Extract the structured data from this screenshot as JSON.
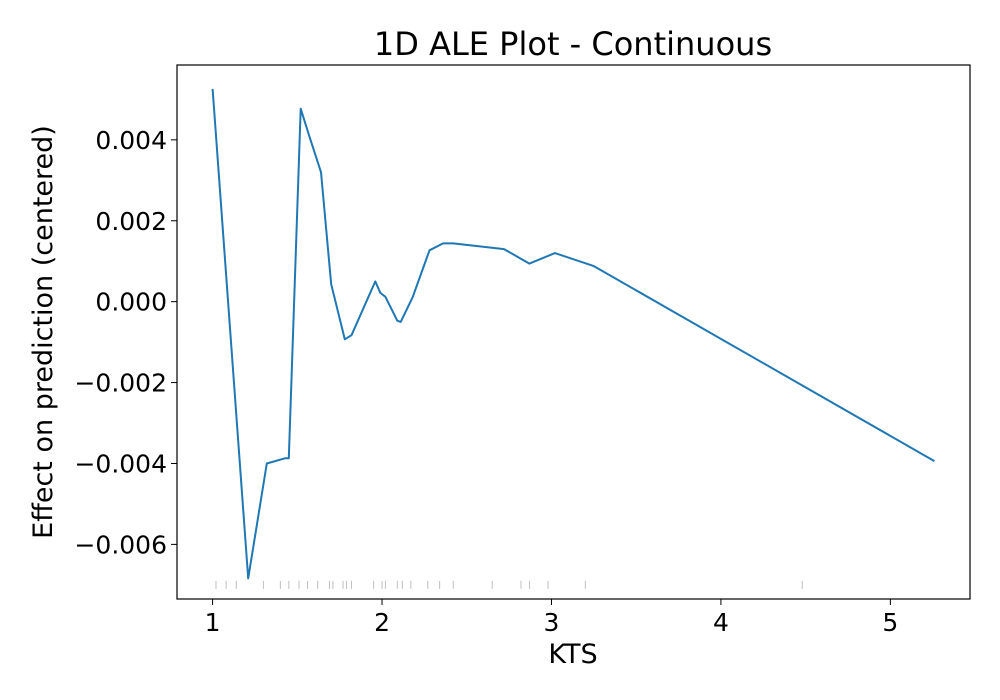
{
  "chart_data": {
    "type": "line",
    "title": "1D ALE Plot - Continuous",
    "xlabel": "KTS",
    "ylabel": "Effect on prediction (centered)",
    "xlim": [
      0.79,
      5.47
    ],
    "ylim": [
      -0.00735,
      0.00585
    ],
    "x_ticks": [
      1,
      2,
      3,
      4,
      5
    ],
    "x_tick_labels": [
      "1",
      "2",
      "3",
      "4",
      "5"
    ],
    "y_ticks": [
      -0.006,
      -0.004,
      -0.002,
      0.0,
      0.002,
      0.004
    ],
    "y_tick_labels": [
      "−0.006",
      "−0.004",
      "−0.002",
      "0.000",
      "0.002",
      "0.004"
    ],
    "grid": false,
    "series": [
      {
        "color": "#1f77b4",
        "x": [
          1.0,
          1.21,
          1.32,
          1.43,
          1.45,
          1.52,
          1.57,
          1.64,
          1.7,
          1.78,
          1.82,
          1.96,
          1.99,
          2.02,
          2.09,
          2.11,
          2.18,
          2.28,
          2.36,
          2.42,
          2.72,
          2.87,
          3.02,
          3.25,
          5.26
        ],
        "y": [
          0.00526,
          -0.00684,
          -0.004,
          -0.00387,
          -0.00387,
          0.00477,
          0.0041,
          0.0032,
          0.00043,
          -0.00093,
          -0.00083,
          0.0005,
          0.00022,
          0.00012,
          -0.00047,
          -0.0005,
          0.0001,
          0.00127,
          0.00144,
          0.00144,
          0.0013,
          0.00094,
          0.0012,
          0.00088,
          -0.00394
        ]
      }
    ],
    "rug": {
      "color": "#bfbfbf",
      "y": -0.007,
      "x": [
        1.02,
        1.08,
        1.14,
        1.3,
        1.4,
        1.45,
        1.51,
        1.56,
        1.62,
        1.69,
        1.71,
        1.77,
        1.79,
        1.82,
        1.95,
        2.0,
        2.02,
        2.09,
        2.12,
        2.17,
        2.27,
        2.34,
        2.42,
        2.65,
        2.82,
        2.87,
        2.98,
        3.2,
        4.48
      ]
    }
  }
}
